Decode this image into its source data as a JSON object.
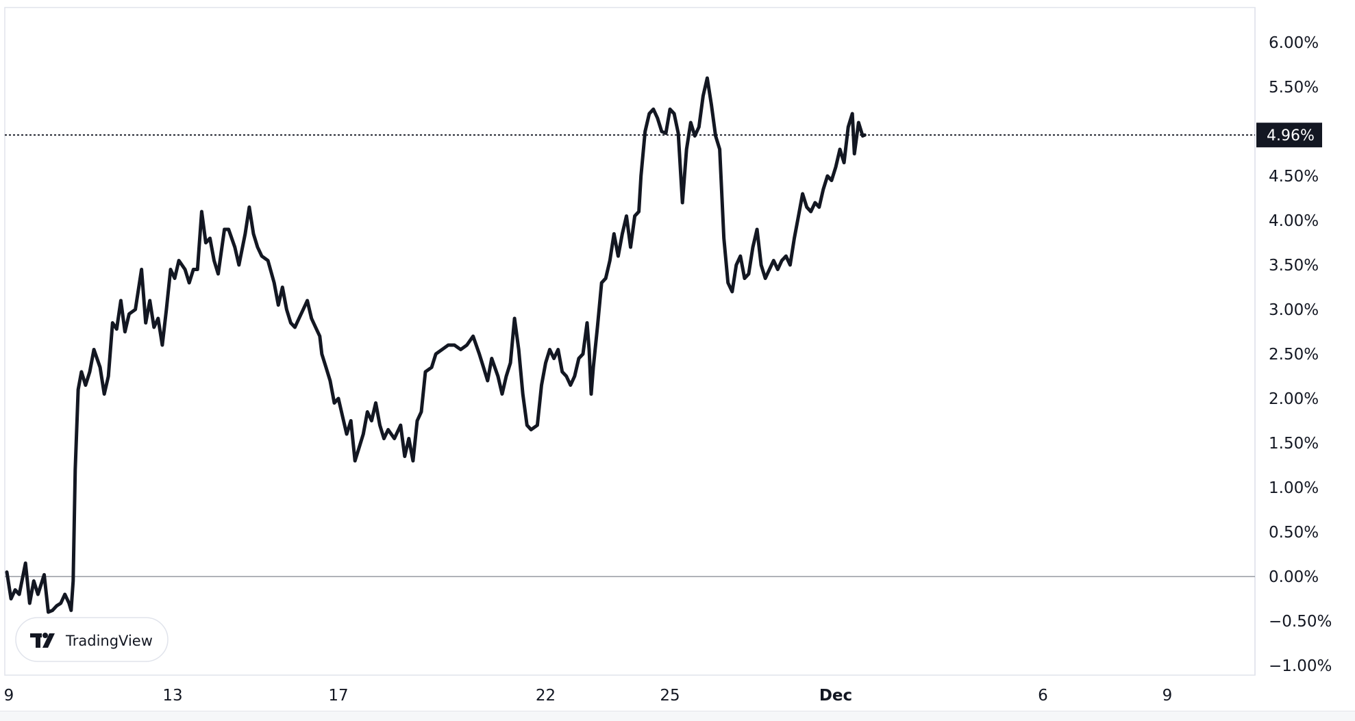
{
  "chart_data": {
    "type": "line",
    "title": "",
    "xlabel": "",
    "ylabel": "",
    "ylim": [
      -1.1,
      6.4
    ],
    "x_tick_labels": [
      {
        "label": "9",
        "day": 0,
        "bold": false
      },
      {
        "label": "13",
        "day": 4,
        "bold": false
      },
      {
        "label": "17",
        "day": 8,
        "bold": false
      },
      {
        "label": "22",
        "day": 13,
        "bold": false
      },
      {
        "label": "25",
        "day": 16,
        "bold": false
      },
      {
        "label": "Dec",
        "day": 20,
        "bold": true
      },
      {
        "label": "6",
        "day": 25,
        "bold": false
      },
      {
        "label": "9",
        "day": 28,
        "bold": false
      }
    ],
    "y_tick_labels": [
      {
        "label": "6.00%",
        "value": 6.0
      },
      {
        "label": "5.50%",
        "value": 5.5
      },
      {
        "label": "4.50%",
        "value": 4.5
      },
      {
        "label": "4.00%",
        "value": 4.0
      },
      {
        "label": "3.50%",
        "value": 3.5
      },
      {
        "label": "3.00%",
        "value": 3.0
      },
      {
        "label": "2.50%",
        "value": 2.5
      },
      {
        "label": "2.00%",
        "value": 2.0
      },
      {
        "label": "1.50%",
        "value": 1.5
      },
      {
        "label": "1.00%",
        "value": 1.0
      },
      {
        "label": "0.50%",
        "value": 0.5
      },
      {
        "label": "0.00%",
        "value": 0.0
      },
      {
        "label": "−0.50%",
        "value": -0.5
      },
      {
        "label": "−1.00%",
        "value": -1.0
      }
    ],
    "current_value": {
      "label": "4.96%",
      "value": 4.96
    },
    "zero_line": 0.0,
    "grid": false,
    "series": [
      {
        "points": [
          [
            0.0,
            0.05
          ],
          [
            0.1,
            -0.25
          ],
          [
            0.2,
            -0.15
          ],
          [
            0.3,
            -0.2
          ],
          [
            0.45,
            0.15
          ],
          [
            0.55,
            -0.3
          ],
          [
            0.65,
            -0.05
          ],
          [
            0.75,
            -0.2
          ],
          [
            0.9,
            0.02
          ],
          [
            1.0,
            -0.4
          ],
          [
            1.1,
            -0.38
          ],
          [
            1.2,
            -0.33
          ],
          [
            1.3,
            -0.3
          ],
          [
            1.4,
            -0.2
          ],
          [
            1.5,
            -0.3
          ],
          [
            1.55,
            -0.38
          ],
          [
            1.6,
            -0.05
          ],
          [
            1.65,
            1.2
          ],
          [
            1.72,
            2.1
          ],
          [
            1.8,
            2.3
          ],
          [
            1.9,
            2.15
          ],
          [
            2.0,
            2.3
          ],
          [
            2.1,
            2.55
          ],
          [
            2.25,
            2.35
          ],
          [
            2.35,
            2.05
          ],
          [
            2.45,
            2.25
          ],
          [
            2.55,
            2.85
          ],
          [
            2.65,
            2.78
          ],
          [
            2.75,
            3.1
          ],
          [
            2.85,
            2.75
          ],
          [
            2.95,
            2.95
          ],
          [
            3.1,
            3.0
          ],
          [
            3.25,
            3.45
          ],
          [
            3.35,
            2.85
          ],
          [
            3.45,
            3.1
          ],
          [
            3.55,
            2.8
          ],
          [
            3.65,
            2.9
          ],
          [
            3.75,
            2.6
          ],
          [
            3.85,
            3.0
          ],
          [
            3.95,
            3.45
          ],
          [
            4.05,
            3.35
          ],
          [
            4.15,
            3.55
          ],
          [
            4.3,
            3.45
          ],
          [
            4.4,
            3.3
          ],
          [
            4.5,
            3.45
          ],
          [
            4.6,
            3.45
          ],
          [
            4.7,
            4.1
          ],
          [
            4.8,
            3.75
          ],
          [
            4.9,
            3.8
          ],
          [
            5.0,
            3.55
          ],
          [
            5.1,
            3.4
          ],
          [
            5.25,
            3.9
          ],
          [
            5.35,
            3.9
          ],
          [
            5.5,
            3.7
          ],
          [
            5.6,
            3.5
          ],
          [
            5.75,
            3.85
          ],
          [
            5.85,
            4.15
          ],
          [
            5.95,
            3.85
          ],
          [
            6.05,
            3.7
          ],
          [
            6.15,
            3.6
          ],
          [
            6.3,
            3.55
          ],
          [
            6.45,
            3.3
          ],
          [
            6.55,
            3.05
          ],
          [
            6.65,
            3.25
          ],
          [
            6.75,
            3.0
          ],
          [
            6.85,
            2.85
          ],
          [
            6.95,
            2.8
          ],
          [
            7.05,
            2.9
          ],
          [
            7.15,
            3.0
          ],
          [
            7.25,
            3.1
          ],
          [
            7.35,
            2.9
          ],
          [
            7.45,
            2.8
          ],
          [
            7.55,
            2.7
          ],
          [
            7.6,
            2.5
          ],
          [
            7.7,
            2.35
          ],
          [
            7.8,
            2.2
          ],
          [
            7.9,
            1.95
          ],
          [
            8.0,
            2.0
          ],
          [
            8.1,
            1.8
          ],
          [
            8.2,
            1.6
          ],
          [
            8.3,
            1.75
          ],
          [
            8.4,
            1.3
          ],
          [
            8.5,
            1.45
          ],
          [
            8.6,
            1.6
          ],
          [
            8.7,
            1.85
          ],
          [
            8.8,
            1.75
          ],
          [
            8.9,
            1.95
          ],
          [
            9.0,
            1.7
          ],
          [
            9.1,
            1.55
          ],
          [
            9.2,
            1.65
          ],
          [
            9.35,
            1.55
          ],
          [
            9.5,
            1.7
          ],
          [
            9.6,
            1.35
          ],
          [
            9.7,
            1.55
          ],
          [
            9.8,
            1.3
          ],
          [
            9.9,
            1.75
          ],
          [
            10.0,
            1.85
          ],
          [
            10.1,
            2.3
          ],
          [
            10.25,
            2.35
          ],
          [
            10.35,
            2.5
          ],
          [
            10.5,
            2.55
          ],
          [
            10.65,
            2.6
          ],
          [
            10.8,
            2.6
          ],
          [
            10.95,
            2.55
          ],
          [
            11.1,
            2.6
          ],
          [
            11.25,
            2.7
          ],
          [
            11.4,
            2.5
          ],
          [
            11.5,
            2.35
          ],
          [
            11.6,
            2.2
          ],
          [
            11.7,
            2.45
          ],
          [
            11.85,
            2.25
          ],
          [
            11.95,
            2.05
          ],
          [
            12.05,
            2.25
          ],
          [
            12.15,
            2.4
          ],
          [
            12.25,
            2.9
          ],
          [
            12.35,
            2.55
          ],
          [
            12.45,
            2.05
          ],
          [
            12.55,
            1.7
          ],
          [
            12.65,
            1.65
          ],
          [
            12.8,
            1.7
          ],
          [
            12.9,
            2.15
          ],
          [
            13.0,
            2.4
          ],
          [
            13.1,
            2.55
          ],
          [
            13.2,
            2.45
          ],
          [
            13.3,
            2.55
          ],
          [
            13.4,
            2.3
          ],
          [
            13.5,
            2.25
          ],
          [
            13.6,
            2.15
          ],
          [
            13.7,
            2.25
          ],
          [
            13.8,
            2.45
          ],
          [
            13.9,
            2.5
          ],
          [
            14.0,
            2.85
          ],
          [
            14.05,
            2.55
          ],
          [
            14.1,
            2.05
          ],
          [
            14.15,
            2.35
          ],
          [
            14.25,
            2.8
          ],
          [
            14.35,
            3.3
          ],
          [
            14.45,
            3.35
          ],
          [
            14.55,
            3.55
          ],
          [
            14.65,
            3.85
          ],
          [
            14.75,
            3.6
          ],
          [
            14.85,
            3.85
          ],
          [
            14.95,
            4.05
          ],
          [
            15.05,
            3.7
          ],
          [
            15.15,
            4.05
          ],
          [
            15.25,
            4.1
          ],
          [
            15.3,
            4.5
          ],
          [
            15.4,
            5.0
          ],
          [
            15.5,
            5.2
          ],
          [
            15.6,
            5.25
          ],
          [
            15.7,
            5.15
          ],
          [
            15.8,
            5.0
          ],
          [
            15.9,
            4.98
          ],
          [
            16.0,
            5.25
          ],
          [
            16.1,
            5.2
          ],
          [
            16.2,
            4.98
          ],
          [
            16.3,
            4.2
          ],
          [
            16.4,
            4.8
          ],
          [
            16.5,
            5.1
          ],
          [
            16.6,
            4.95
          ],
          [
            16.7,
            5.05
          ],
          [
            16.8,
            5.4
          ],
          [
            16.9,
            5.6
          ],
          [
            17.0,
            5.3
          ],
          [
            17.1,
            4.95
          ],
          [
            17.2,
            4.8
          ],
          [
            17.3,
            3.8
          ],
          [
            17.4,
            3.3
          ],
          [
            17.5,
            3.2
          ],
          [
            17.6,
            3.5
          ],
          [
            17.7,
            3.6
          ],
          [
            17.8,
            3.35
          ],
          [
            17.9,
            3.4
          ],
          [
            18.0,
            3.7
          ],
          [
            18.1,
            3.9
          ],
          [
            18.2,
            3.5
          ],
          [
            18.3,
            3.35
          ],
          [
            18.4,
            3.45
          ],
          [
            18.5,
            3.55
          ],
          [
            18.6,
            3.45
          ],
          [
            18.7,
            3.55
          ],
          [
            18.8,
            3.6
          ],
          [
            18.9,
            3.5
          ],
          [
            19.0,
            3.8
          ],
          [
            19.1,
            4.05
          ],
          [
            19.2,
            4.3
          ],
          [
            19.3,
            4.15
          ],
          [
            19.4,
            4.1
          ],
          [
            19.5,
            4.2
          ],
          [
            19.6,
            4.15
          ],
          [
            19.7,
            4.35
          ],
          [
            19.8,
            4.5
          ],
          [
            19.9,
            4.45
          ],
          [
            20.0,
            4.6
          ],
          [
            20.1,
            4.8
          ],
          [
            20.2,
            4.65
          ],
          [
            20.3,
            5.05
          ],
          [
            20.4,
            5.2
          ],
          [
            20.45,
            4.75
          ],
          [
            20.55,
            5.1
          ],
          [
            20.65,
            4.95
          ],
          [
            20.7,
            4.96
          ]
        ]
      }
    ]
  },
  "watermark": {
    "text": "TradingView"
  },
  "colors": {
    "line": "#131722",
    "label_bg": "#131722",
    "label_text": "#ffffff",
    "zero_line": "#9598a1",
    "border": "#e0e3eb"
  }
}
